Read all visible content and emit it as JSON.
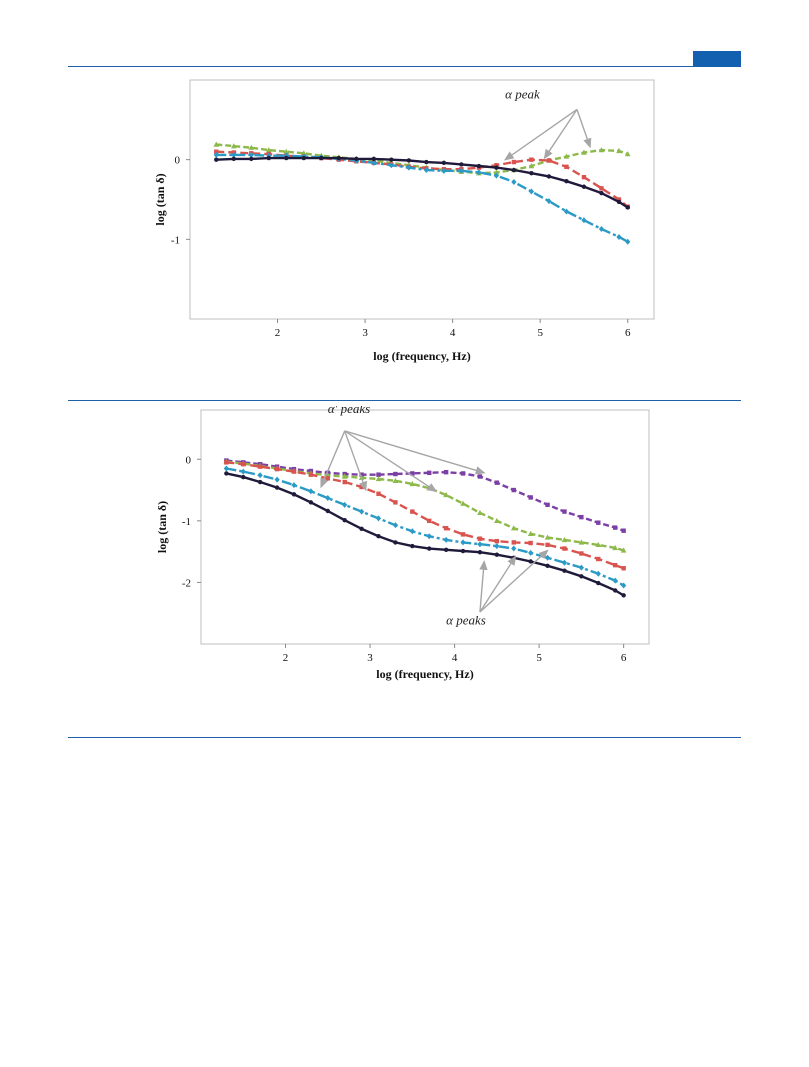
{
  "page": {
    "accent": "#1360b0",
    "rule_color": "#1f5fa6",
    "header_block": ""
  },
  "chart_data": [
    {
      "type": "line",
      "title": "",
      "xlabel": "log (frequency, Hz)",
      "ylabel": "log (tan δ)",
      "xlim": [
        1,
        6.3
      ],
      "ylim": [
        -2,
        1
      ],
      "xticks": [
        "2",
        "3",
        "4",
        "5",
        "6"
      ],
      "yticks": [
        "0",
        "-1"
      ],
      "grid": false,
      "legend": "none",
      "annotations": [
        {
          "text": "α peak",
          "x": 4.6,
          "y": 0.77
        }
      ],
      "series": [
        {
          "color": "#8db94a",
          "marker": "triangle",
          "dash": "6,3",
          "x": [
            1.3,
            1.5,
            1.7,
            1.9,
            2.1,
            2.3,
            2.5,
            2.7,
            2.9,
            3.1,
            3.3,
            3.5,
            3.7,
            3.9,
            4.1,
            4.3,
            4.5,
            4.7,
            4.9,
            5.1,
            5.3,
            5.5,
            5.7,
            5.9,
            6.0
          ],
          "y": [
            0.19,
            0.17,
            0.15,
            0.12,
            0.1,
            0.08,
            0.05,
            0.03,
            0.01,
            -0.01,
            -0.04,
            -0.07,
            -0.1,
            -0.13,
            -0.15,
            -0.17,
            -0.16,
            -0.13,
            -0.08,
            -0.01,
            0.04,
            0.09,
            0.12,
            0.11,
            0.07
          ]
        },
        {
          "color": "#d9534f",
          "marker": "square",
          "dash": "8,4",
          "x": [
            1.3,
            1.5,
            1.7,
            1.9,
            2.1,
            2.3,
            2.5,
            2.7,
            2.9,
            3.1,
            3.3,
            3.5,
            3.7,
            3.9,
            4.1,
            4.3,
            4.5,
            4.7,
            4.9,
            5.1,
            5.3,
            5.5,
            5.7,
            5.9,
            6.0
          ],
          "y": [
            0.1,
            0.09,
            0.08,
            0.07,
            0.05,
            0.04,
            0.02,
            0.0,
            -0.02,
            -0.04,
            -0.06,
            -0.09,
            -0.11,
            -0.12,
            -0.12,
            -0.1,
            -0.07,
            -0.03,
            0.0,
            -0.01,
            -0.09,
            -0.22,
            -0.36,
            -0.5,
            -0.59
          ]
        },
        {
          "color": "#2b9ac6",
          "marker": "diamond",
          "dash": "10,3,3,3",
          "x": [
            1.3,
            1.5,
            1.7,
            1.9,
            2.1,
            2.3,
            2.5,
            2.7,
            2.9,
            3.1,
            3.3,
            3.5,
            3.7,
            3.9,
            4.1,
            4.3,
            4.5,
            4.7,
            4.9,
            5.1,
            5.3,
            5.5,
            5.7,
            5.9,
            6.0
          ],
          "y": [
            0.06,
            0.06,
            0.06,
            0.05,
            0.05,
            0.04,
            0.03,
            0.01,
            -0.01,
            -0.04,
            -0.07,
            -0.1,
            -0.13,
            -0.14,
            -0.14,
            -0.16,
            -0.2,
            -0.28,
            -0.4,
            -0.52,
            -0.65,
            -0.76,
            -0.87,
            -0.97,
            -1.03
          ]
        },
        {
          "color": "#1f1a3a",
          "marker": "circle",
          "dash": "",
          "x": [
            1.3,
            1.5,
            1.7,
            1.9,
            2.1,
            2.3,
            2.5,
            2.7,
            2.9,
            3.1,
            3.3,
            3.5,
            3.7,
            3.9,
            4.1,
            4.3,
            4.5,
            4.7,
            4.9,
            5.1,
            5.3,
            5.5,
            5.7,
            5.9,
            6.0
          ],
          "y": [
            0.0,
            0.01,
            0.01,
            0.02,
            0.02,
            0.02,
            0.02,
            0.02,
            0.01,
            0.01,
            0.0,
            -0.01,
            -0.03,
            -0.04,
            -0.06,
            -0.08,
            -0.1,
            -0.13,
            -0.17,
            -0.21,
            -0.27,
            -0.34,
            -0.42,
            -0.53,
            -0.6
          ]
        }
      ]
    },
    {
      "type": "line",
      "title": "",
      "xlabel": "log (frequency, Hz)",
      "ylabel": "log (tan δ)",
      "xlim": [
        1,
        6.3
      ],
      "ylim": [
        -3,
        0.8
      ],
      "xticks": [
        "2",
        "3",
        "4",
        "5",
        "6"
      ],
      "yticks": [
        "0",
        "-1",
        "-2"
      ],
      "grid": false,
      "legend": "none",
      "annotations": [
        {
          "text": "α' peaks",
          "x": 2.5,
          "y": 0.75
        },
        {
          "text": "α peaks",
          "x": 3.9,
          "y": -2.68
        }
      ],
      "series": [
        {
          "color": "#7b3fa6",
          "marker": "square",
          "dash": "6,3",
          "x": [
            1.3,
            1.5,
            1.7,
            1.9,
            2.1,
            2.3,
            2.5,
            2.7,
            2.9,
            3.1,
            3.3,
            3.5,
            3.7,
            3.9,
            4.1,
            4.3,
            4.5,
            4.7,
            4.9,
            5.1,
            5.3,
            5.5,
            5.7,
            5.9,
            6.0
          ],
          "y": [
            -0.02,
            -0.05,
            -0.08,
            -0.12,
            -0.16,
            -0.19,
            -0.22,
            -0.24,
            -0.25,
            -0.25,
            -0.24,
            -0.23,
            -0.22,
            -0.21,
            -0.23,
            -0.28,
            -0.38,
            -0.5,
            -0.62,
            -0.74,
            -0.85,
            -0.94,
            -1.03,
            -1.11,
            -1.16
          ]
        },
        {
          "color": "#8db94a",
          "marker": "triangle",
          "dash": "6,3",
          "x": [
            1.3,
            1.5,
            1.7,
            1.9,
            2.1,
            2.3,
            2.5,
            2.7,
            2.9,
            3.1,
            3.3,
            3.5,
            3.7,
            3.9,
            4.1,
            4.3,
            4.5,
            4.7,
            4.9,
            5.1,
            5.3,
            5.5,
            5.7,
            5.9,
            6.0
          ],
          "y": [
            -0.04,
            -0.07,
            -0.11,
            -0.15,
            -0.19,
            -0.23,
            -0.26,
            -0.28,
            -0.3,
            -0.32,
            -0.35,
            -0.4,
            -0.47,
            -0.58,
            -0.72,
            -0.87,
            -1.0,
            -1.12,
            -1.21,
            -1.27,
            -1.31,
            -1.35,
            -1.39,
            -1.44,
            -1.48
          ]
        },
        {
          "color": "#d9534f",
          "marker": "square",
          "dash": "8,4",
          "x": [
            1.3,
            1.5,
            1.7,
            1.9,
            2.1,
            2.3,
            2.5,
            2.7,
            2.9,
            3.1,
            3.3,
            3.5,
            3.7,
            3.9,
            4.1,
            4.3,
            4.5,
            4.7,
            4.9,
            5.1,
            5.3,
            5.5,
            5.7,
            5.9,
            6.0
          ],
          "y": [
            -0.05,
            -0.08,
            -0.12,
            -0.16,
            -0.2,
            -0.25,
            -0.31,
            -0.37,
            -0.45,
            -0.56,
            -0.7,
            -0.85,
            -1.0,
            -1.12,
            -1.22,
            -1.29,
            -1.33,
            -1.35,
            -1.36,
            -1.39,
            -1.45,
            -1.53,
            -1.62,
            -1.72,
            -1.77
          ]
        },
        {
          "color": "#2b9ac6",
          "marker": "diamond",
          "dash": "10,3,3,3",
          "x": [
            1.3,
            1.5,
            1.7,
            1.9,
            2.1,
            2.3,
            2.5,
            2.7,
            2.9,
            3.1,
            3.3,
            3.5,
            3.7,
            3.9,
            4.1,
            4.3,
            4.5,
            4.7,
            4.9,
            5.1,
            5.3,
            5.5,
            5.7,
            5.9,
            6.0
          ],
          "y": [
            -0.15,
            -0.2,
            -0.26,
            -0.33,
            -0.42,
            -0.52,
            -0.63,
            -0.74,
            -0.85,
            -0.96,
            -1.07,
            -1.17,
            -1.25,
            -1.31,
            -1.35,
            -1.38,
            -1.41,
            -1.45,
            -1.52,
            -1.6,
            -1.68,
            -1.76,
            -1.86,
            -1.97,
            -2.05
          ]
        },
        {
          "color": "#1f1a3a",
          "marker": "circle",
          "dash": "",
          "x": [
            1.3,
            1.5,
            1.7,
            1.9,
            2.1,
            2.3,
            2.5,
            2.7,
            2.9,
            3.1,
            3.3,
            3.5,
            3.7,
            3.9,
            4.1,
            4.3,
            4.5,
            4.7,
            4.9,
            5.1,
            5.3,
            5.5,
            5.7,
            5.9,
            6.0
          ],
          "y": [
            -0.23,
            -0.29,
            -0.37,
            -0.46,
            -0.57,
            -0.7,
            -0.84,
            -0.99,
            -1.13,
            -1.25,
            -1.35,
            -1.41,
            -1.45,
            -1.47,
            -1.49,
            -1.51,
            -1.55,
            -1.6,
            -1.66,
            -1.73,
            -1.81,
            -1.9,
            -2.01,
            -2.13,
            -2.21
          ]
        }
      ]
    }
  ]
}
